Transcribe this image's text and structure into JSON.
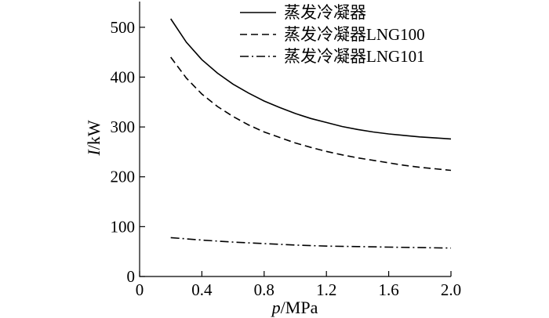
{
  "chart_data": {
    "type": "line",
    "xlabel_var": "p",
    "xlabel_unit": "/MPa",
    "ylabel_var": "I",
    "ylabel_unit": "/kW",
    "xlim": [
      0,
      2.0
    ],
    "ylim": [
      0,
      550
    ],
    "xticks": [
      "0",
      "0.4",
      "0.8",
      "1.2",
      "1.6",
      "2.0"
    ],
    "yticks": [
      "0",
      "100",
      "200",
      "300",
      "400",
      "500"
    ],
    "grid": false,
    "legend_position": "top-right",
    "series": [
      {
        "name": "蒸发冷凝器",
        "style": "solid",
        "x": [
          0.2,
          0.3,
          0.4,
          0.5,
          0.6,
          0.7,
          0.8,
          0.9,
          1.0,
          1.1,
          1.2,
          1.3,
          1.4,
          1.5,
          1.6,
          1.7,
          1.8,
          1.9,
          2.0
        ],
        "y": [
          517,
          470,
          435,
          408,
          386,
          368,
          352,
          339,
          327,
          317,
          309,
          301,
          295,
          290,
          286,
          283,
          280,
          278,
          276
        ]
      },
      {
        "name": "蒸发冷凝器LNG100",
        "style": "dashed",
        "x": [
          0.2,
          0.3,
          0.4,
          0.5,
          0.6,
          0.7,
          0.8,
          0.9,
          1.0,
          1.1,
          1.2,
          1.3,
          1.4,
          1.5,
          1.6,
          1.7,
          1.8,
          1.9,
          2.0
        ],
        "y": [
          440,
          398,
          366,
          341,
          321,
          304,
          290,
          279,
          268,
          259,
          251,
          244,
          238,
          233,
          228,
          223,
          219,
          216,
          213
        ]
      },
      {
        "name": "蒸发冷凝器LNG101",
        "style": "dashdot",
        "x": [
          0.2,
          0.4,
          0.6,
          0.8,
          1.0,
          1.2,
          1.4,
          1.6,
          1.8,
          2.0
        ],
        "y": [
          78,
          73,
          69,
          66,
          63,
          61,
          60,
          59,
          58,
          57
        ]
      }
    ]
  }
}
